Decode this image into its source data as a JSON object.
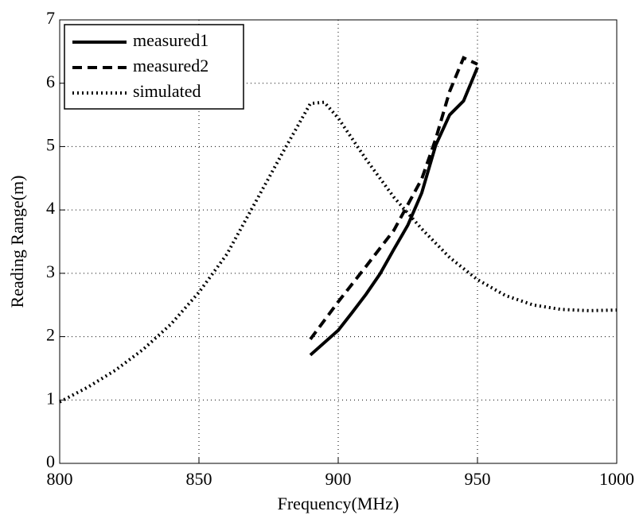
{
  "chart_data": {
    "type": "line",
    "xlabel": "Frequency(MHz)",
    "ylabel": "Reading Range(m)",
    "xlim": [
      800,
      1000
    ],
    "ylim": [
      0,
      7
    ],
    "xticks": [
      800,
      850,
      900,
      950,
      1000
    ],
    "yticks": [
      0,
      1,
      2,
      3,
      4,
      5,
      6,
      7
    ],
    "grid": true,
    "legend": "upper left",
    "series": [
      {
        "name": "measured1",
        "color": "#000000",
        "dash": "solid",
        "x": [
          890,
          900,
          905,
          910,
          915,
          920,
          925,
          930,
          935,
          940,
          945,
          950
        ],
        "values": [
          1.71,
          2.1,
          2.38,
          2.67,
          2.99,
          3.38,
          3.76,
          4.27,
          5.02,
          5.5,
          5.72,
          6.25
        ]
      },
      {
        "name": "measured2",
        "color": "#000000",
        "dash": "dashed",
        "x": [
          890,
          900,
          910,
          920,
          930,
          935,
          940,
          945,
          950
        ],
        "values": [
          1.96,
          2.55,
          3.11,
          3.68,
          4.49,
          5.12,
          5.87,
          6.4,
          6.3
        ]
      },
      {
        "name": "simulated",
        "color": "#000000",
        "dash": "dotted",
        "x": [
          800,
          810,
          820,
          830,
          840,
          850,
          860,
          870,
          880,
          890,
          895,
          900,
          910,
          920,
          930,
          940,
          950,
          960,
          970,
          980,
          990,
          1000
        ],
        "values": [
          0.97,
          1.2,
          1.47,
          1.8,
          2.2,
          2.7,
          3.3,
          4.1,
          4.9,
          5.68,
          5.7,
          5.45,
          4.8,
          4.2,
          3.7,
          3.25,
          2.9,
          2.65,
          2.5,
          2.43,
          2.41,
          2.42
        ]
      }
    ]
  }
}
